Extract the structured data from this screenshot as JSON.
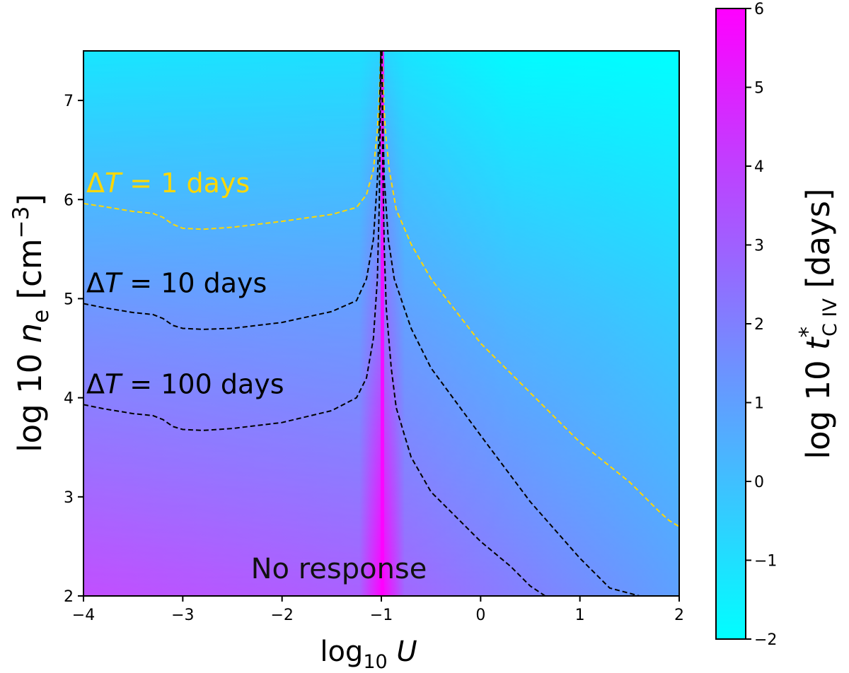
{
  "chart_data": {
    "type": "heatmap",
    "title": "",
    "xlabel": {
      "base": "log",
      "sub": "10",
      "var": "U"
    },
    "ylabel": {
      "pre": "log 10 ",
      "var": "n",
      "sub": "e",
      "unit": " [cm",
      "sup": "−3",
      "close": "]"
    },
    "xlim": [
      -4,
      2
    ],
    "ylim": [
      2,
      7.5
    ],
    "x_ticks": [
      -4,
      -3,
      -2,
      -1,
      0,
      1,
      2
    ],
    "x_tick_labels": [
      "−4",
      "−3",
      "−2",
      "−1",
      "0",
      "1",
      "2"
    ],
    "y_ticks": [
      2,
      3,
      4,
      5,
      6,
      7
    ],
    "y_tick_labels": [
      "2",
      "3",
      "4",
      "5",
      "6",
      "7"
    ],
    "colorbar": {
      "label": {
        "pre": "log 10 ",
        "var": "t",
        "sup": "*",
        "sub": "C IV",
        "unit": " [days]"
      },
      "range": [
        -2,
        6
      ],
      "ticks": [
        -2,
        -1,
        0,
        1,
        2,
        3,
        4,
        5,
        6
      ],
      "tick_labels": [
        "−2",
        "−1",
        "0",
        "1",
        "2",
        "3",
        "4",
        "5",
        "6"
      ],
      "colormap": [
        "#00ffff",
        "#ff00ff"
      ]
    },
    "contours": [
      {
        "name": "ΔT = 1 days",
        "label": {
          "pre": "Δ",
          "var": "T",
          "rest": " = 1 days"
        },
        "color": "#ffd700",
        "left_branch": [
          [
            -4,
            5.96
          ],
          [
            -3.8,
            5.93
          ],
          [
            -3.5,
            5.88
          ],
          [
            -3.3,
            5.86
          ],
          [
            -3.2,
            5.82
          ],
          [
            -3.1,
            5.75
          ],
          [
            -3.0,
            5.71
          ],
          [
            -2.8,
            5.7
          ],
          [
            -2.5,
            5.72
          ],
          [
            -2.0,
            5.78
          ],
          [
            -1.5,
            5.85
          ],
          [
            -1.25,
            5.92
          ],
          [
            -1.15,
            6.05
          ],
          [
            -1.08,
            6.3
          ],
          [
            -1.04,
            6.7
          ],
          [
            -1.02,
            7.1
          ],
          [
            -1.005,
            7.5
          ]
        ],
        "right_branch": [
          [
            -0.995,
            7.5
          ],
          [
            -0.98,
            7.1
          ],
          [
            -0.96,
            6.7
          ],
          [
            -0.92,
            6.3
          ],
          [
            -0.85,
            5.9
          ],
          [
            -0.7,
            5.55
          ],
          [
            -0.5,
            5.2
          ],
          [
            0,
            4.55
          ],
          [
            0.5,
            4.05
          ],
          [
            1.0,
            3.55
          ],
          [
            1.5,
            3.15
          ],
          [
            1.8,
            2.85
          ],
          [
            1.9,
            2.76
          ],
          [
            2.0,
            2.7
          ]
        ]
      },
      {
        "name": "ΔT = 10 days",
        "label": {
          "pre": "Δ",
          "var": "T",
          "rest": " = 10 days"
        },
        "color": "#000000",
        "left_branch": [
          [
            -4,
            4.95
          ],
          [
            -3.8,
            4.91
          ],
          [
            -3.5,
            4.86
          ],
          [
            -3.3,
            4.84
          ],
          [
            -3.2,
            4.8
          ],
          [
            -3.1,
            4.73
          ],
          [
            -3.0,
            4.7
          ],
          [
            -2.8,
            4.69
          ],
          [
            -2.5,
            4.7
          ],
          [
            -2.0,
            4.76
          ],
          [
            -1.5,
            4.87
          ],
          [
            -1.25,
            4.98
          ],
          [
            -1.15,
            5.2
          ],
          [
            -1.08,
            5.6
          ],
          [
            -1.04,
            6.2
          ],
          [
            -1.02,
            6.8
          ],
          [
            -1.005,
            7.5
          ]
        ],
        "right_branch": [
          [
            -0.995,
            7.5
          ],
          [
            -0.985,
            6.8
          ],
          [
            -0.97,
            6.2
          ],
          [
            -0.93,
            5.6
          ],
          [
            -0.87,
            5.2
          ],
          [
            -0.7,
            4.7
          ],
          [
            -0.5,
            4.3
          ],
          [
            0,
            3.62
          ],
          [
            0.5,
            2.95
          ],
          [
            1.0,
            2.38
          ],
          [
            1.3,
            2.08
          ],
          [
            1.6,
            2.0
          ]
        ]
      },
      {
        "name": "ΔT = 100 days",
        "label": {
          "pre": "Δ",
          "var": "T",
          "rest": " = 100 days"
        },
        "color": "#000000",
        "left_branch": [
          [
            -4,
            3.93
          ],
          [
            -3.8,
            3.89
          ],
          [
            -3.5,
            3.84
          ],
          [
            -3.3,
            3.82
          ],
          [
            -3.2,
            3.78
          ],
          [
            -3.1,
            3.71
          ],
          [
            -3.0,
            3.68
          ],
          [
            -2.8,
            3.67
          ],
          [
            -2.5,
            3.69
          ],
          [
            -2.0,
            3.75
          ],
          [
            -1.5,
            3.87
          ],
          [
            -1.25,
            4.0
          ],
          [
            -1.15,
            4.2
          ],
          [
            -1.08,
            4.6
          ],
          [
            -1.04,
            5.2
          ],
          [
            -1.02,
            6.0
          ],
          [
            -1.005,
            7.5
          ]
        ],
        "right_branch": [
          [
            -0.995,
            7.5
          ],
          [
            -0.985,
            6.3
          ],
          [
            -0.97,
            5.5
          ],
          [
            -0.95,
            4.9
          ],
          [
            -0.9,
            4.3
          ],
          [
            -0.85,
            3.9
          ],
          [
            -0.7,
            3.4
          ],
          [
            -0.5,
            3.05
          ],
          [
            0,
            2.55
          ],
          [
            0.3,
            2.3
          ],
          [
            0.5,
            2.1
          ],
          [
            0.65,
            2.0
          ]
        ]
      }
    ],
    "annotation": "No response"
  }
}
